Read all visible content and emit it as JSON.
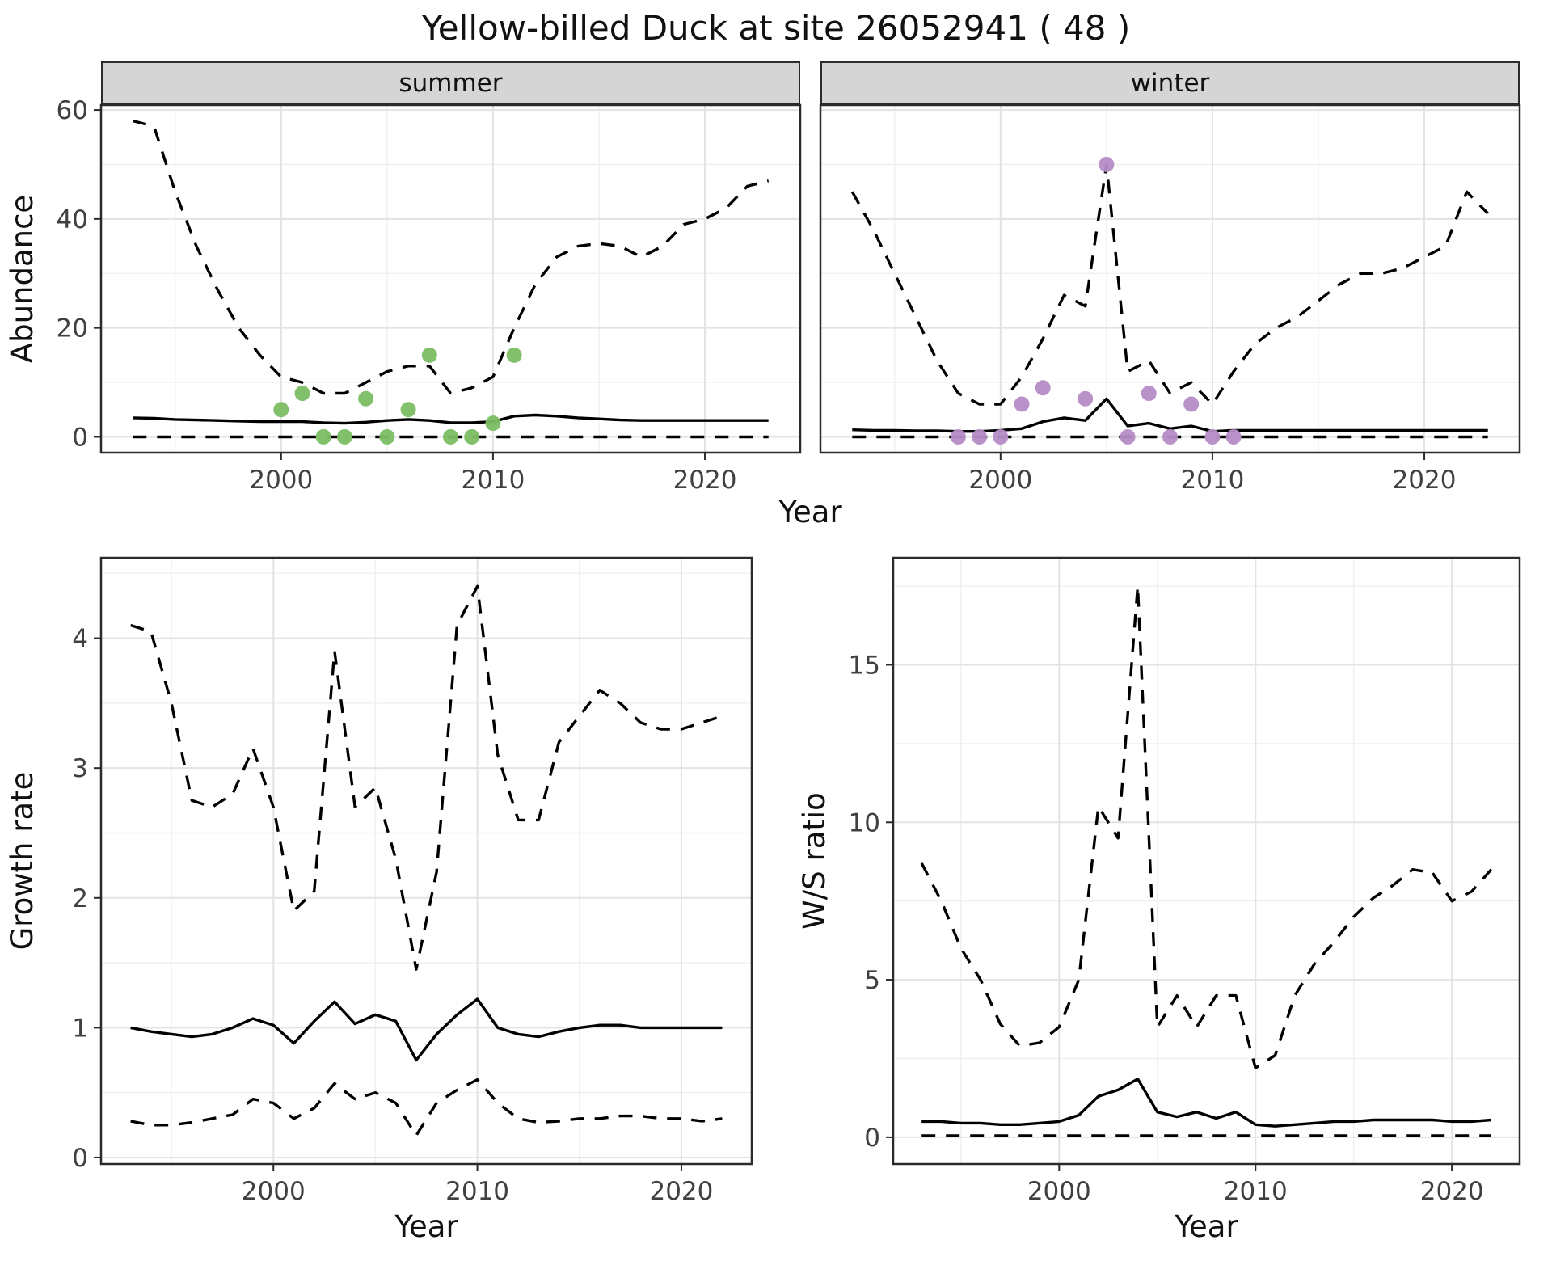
{
  "title": "Yellow-billed Duck at site 26052941 ( 48 )",
  "colors": {
    "summer_points": "#7cbd63",
    "winter_points": "#b58cc6",
    "line": "#000000",
    "grid_major": "#e3e3e3",
    "grid_minor": "#f0f0f0",
    "panel_border": "#2b2b2b",
    "axis_text": "#404040",
    "strip_bg": "#d5d5d5"
  },
  "chart_data": [
    {
      "id": "abundance-summer",
      "type": "line",
      "facet": "summer",
      "ylabel": "Abundance",
      "xlabel": "Year",
      "x_start": 1993,
      "x_range": [
        1991.5,
        2024.5
      ],
      "y_range": [
        -2.9,
        60.9
      ],
      "x_ticks": [
        2000,
        2010,
        2020
      ],
      "y_ticks": [
        0,
        20,
        40,
        60
      ],
      "series": [
        {
          "name": "upper-ci",
          "style": "dashed",
          "values": [
            58,
            57,
            45,
            35,
            27,
            20,
            15,
            11,
            10,
            8,
            8,
            10,
            12,
            13,
            13,
            8,
            9,
            11,
            20,
            28,
            33,
            35,
            35.5,
            35,
            33,
            35,
            39,
            40,
            42,
            46,
            47
          ]
        },
        {
          "name": "median",
          "style": "solid",
          "values": [
            3.5,
            3.4,
            3.2,
            3.1,
            3,
            2.9,
            2.8,
            2.8,
            2.8,
            2.6,
            2.5,
            2.7,
            3,
            3.2,
            3,
            2.6,
            2.6,
            2.8,
            3.8,
            4,
            3.8,
            3.5,
            3.3,
            3.1,
            3,
            3,
            3,
            3,
            3,
            3,
            3
          ]
        },
        {
          "name": "lower-ci",
          "style": "dashed",
          "values": [
            0,
            0,
            0,
            0,
            0,
            0,
            0,
            0,
            0,
            0,
            0,
            0,
            0,
            0,
            0,
            0,
            0,
            0,
            0,
            0,
            0,
            0,
            0,
            0,
            0,
            0,
            0,
            0,
            0,
            0,
            0
          ]
        }
      ],
      "points": {
        "color_key": "summer_points",
        "data": [
          [
            2000,
            5
          ],
          [
            2001,
            8
          ],
          [
            2002,
            0
          ],
          [
            2003,
            0
          ],
          [
            2004,
            7
          ],
          [
            2005,
            0
          ],
          [
            2006,
            5
          ],
          [
            2007,
            15
          ],
          [
            2008,
            0
          ],
          [
            2009,
            0
          ],
          [
            2010,
            2.5
          ],
          [
            2011,
            15
          ]
        ]
      }
    },
    {
      "id": "abundance-winter",
      "type": "line",
      "facet": "winter",
      "x_start": 1993,
      "x_range": [
        1991.5,
        2024.5
      ],
      "y_range": [
        -2.9,
        60.9
      ],
      "x_ticks": [
        2000,
        2010,
        2020
      ],
      "y_ticks": [
        0,
        20,
        40,
        60
      ],
      "series": [
        {
          "name": "upper-ci",
          "style": "dashed",
          "values": [
            45,
            38,
            30,
            22,
            14,
            8,
            6,
            6,
            11,
            18,
            26,
            24,
            50,
            12,
            14,
            8,
            10,
            6,
            12,
            17,
            20,
            22,
            25,
            28,
            30,
            30,
            31,
            33,
            35,
            45,
            41
          ]
        },
        {
          "name": "median",
          "style": "solid",
          "values": [
            1.3,
            1.2,
            1.2,
            1.1,
            1.1,
            1,
            1,
            1.2,
            1.5,
            2.8,
            3.5,
            3,
            7,
            2,
            2.5,
            1.5,
            2,
            1,
            1.2,
            1.2,
            1.2,
            1.2,
            1.2,
            1.2,
            1.2,
            1.2,
            1.2,
            1.2,
            1.2,
            1.2,
            1.2
          ]
        },
        {
          "name": "lower-ci",
          "style": "dashed",
          "values": [
            0,
            0,
            0,
            0,
            0,
            0,
            0,
            0,
            0,
            0,
            0,
            0,
            0,
            0,
            0,
            0,
            0,
            0,
            0,
            0,
            0,
            0,
            0,
            0,
            0,
            0,
            0,
            0,
            0,
            0,
            0
          ]
        }
      ],
      "points": {
        "color_key": "winter_points",
        "data": [
          [
            1998,
            0
          ],
          [
            1999,
            0
          ],
          [
            2000,
            0
          ],
          [
            2001,
            6
          ],
          [
            2002,
            9
          ],
          [
            2004,
            7
          ],
          [
            2005,
            50
          ],
          [
            2006,
            0
          ],
          [
            2007,
            8
          ],
          [
            2008,
            0
          ],
          [
            2009,
            6
          ],
          [
            2010,
            0
          ],
          [
            2011,
            0
          ]
        ]
      }
    },
    {
      "id": "growth-rate",
      "type": "line",
      "ylabel": "Growth rate",
      "xlabel": "Year",
      "x_start": 1993,
      "x_range": [
        1991.55,
        2023.45
      ],
      "y_range": [
        -0.05,
        4.62
      ],
      "x_ticks": [
        2000,
        2010,
        2020
      ],
      "y_ticks": [
        0,
        1,
        2,
        3,
        4
      ],
      "series": [
        {
          "name": "upper-ci",
          "style": "dashed",
          "values": [
            4.1,
            4.05,
            3.5,
            2.75,
            2.7,
            2.8,
            3.15,
            2.7,
            1.9,
            2.05,
            3.9,
            2.7,
            2.85,
            2.3,
            1.45,
            2.2,
            4.1,
            4.4,
            3.1,
            2.6,
            2.6,
            3.2,
            3.4,
            3.6,
            3.5,
            3.35,
            3.3,
            3.3,
            3.35,
            3.4
          ]
        },
        {
          "name": "median",
          "style": "solid",
          "values": [
            1,
            0.97,
            0.95,
            0.93,
            0.95,
            1,
            1.07,
            1.02,
            0.88,
            1.05,
            1.2,
            1.03,
            1.1,
            1.05,
            0.75,
            0.95,
            1.1,
            1.22,
            1,
            0.95,
            0.93,
            0.97,
            1,
            1.02,
            1.02,
            1,
            1,
            1,
            1,
            1
          ]
        },
        {
          "name": "lower-ci",
          "style": "dashed",
          "values": [
            0.28,
            0.25,
            0.25,
            0.27,
            0.3,
            0.33,
            0.45,
            0.42,
            0.3,
            0.38,
            0.57,
            0.45,
            0.5,
            0.42,
            0.17,
            0.42,
            0.52,
            0.6,
            0.42,
            0.3,
            0.27,
            0.28,
            0.3,
            0.3,
            0.32,
            0.32,
            0.3,
            0.3,
            0.28,
            0.3
          ]
        }
      ]
    },
    {
      "id": "ws-ratio",
      "type": "line",
      "ylabel": "W/S ratio",
      "xlabel": "Year",
      "x_start": 1993,
      "x_range": [
        1991.55,
        2023.45
      ],
      "y_range": [
        -0.85,
        18.4
      ],
      "x_ticks": [
        2000,
        2010,
        2020
      ],
      "y_ticks": [
        0,
        5,
        10,
        15
      ],
      "series": [
        {
          "name": "upper-ci",
          "style": "dashed",
          "values": [
            8.7,
            7.5,
            6,
            5,
            3.6,
            2.9,
            3,
            3.5,
            5,
            10.5,
            9.5,
            17.5,
            3.5,
            4.5,
            3.5,
            4.5,
            4.5,
            2.2,
            2.6,
            4.5,
            5.5,
            6.2,
            7,
            7.6,
            8,
            8.5,
            8.4,
            7.5,
            7.8,
            8.5
          ]
        },
        {
          "name": "median",
          "style": "solid",
          "values": [
            0.5,
            0.5,
            0.45,
            0.45,
            0.4,
            0.4,
            0.45,
            0.5,
            0.7,
            1.3,
            1.5,
            1.85,
            0.8,
            0.65,
            0.8,
            0.6,
            0.8,
            0.4,
            0.35,
            0.4,
            0.45,
            0.5,
            0.5,
            0.55,
            0.55,
            0.55,
            0.55,
            0.5,
            0.5,
            0.55
          ]
        },
        {
          "name": "lower-ci",
          "style": "dashed",
          "values": [
            0.05,
            0.05,
            0.05,
            0.05,
            0.05,
            0.05,
            0.05,
            0.05,
            0.05,
            0.05,
            0.05,
            0.05,
            0.05,
            0.05,
            0.05,
            0.05,
            0.05,
            0.05,
            0.05,
            0.05,
            0.05,
            0.05,
            0.05,
            0.05,
            0.05,
            0.05,
            0.05,
            0.05,
            0.05,
            0.05
          ]
        }
      ]
    }
  ]
}
